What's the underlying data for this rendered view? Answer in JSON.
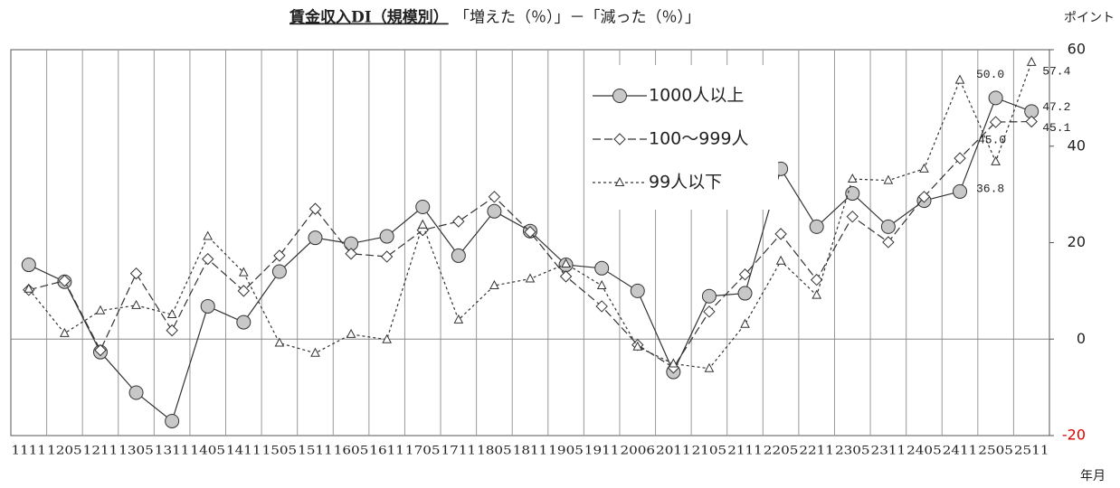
{
  "chart_data": {
    "type": "line",
    "title": "賃金収入DI（規模別）",
    "subtitle": "「増えた（％）」－「減った（％）」",
    "ylabel": "ポイント",
    "xlabel": "年月",
    "categories": [
      "1111",
      "1205",
      "1211",
      "1305",
      "1311",
      "1405",
      "1411",
      "1505",
      "1511",
      "1605",
      "1611",
      "1705",
      "1711",
      "1805",
      "1811",
      "1905",
      "1911",
      "2006",
      "2011",
      "2105",
      "2111",
      "2205",
      "2211",
      "2305",
      "2311",
      "2405",
      "2411",
      "2505",
      "2511"
    ],
    "ylim": [
      -20,
      60
    ],
    "yticks": [
      -20,
      0,
      20,
      40,
      60
    ],
    "y_axis_side": "right",
    "grid": "x",
    "series": [
      {
        "name": "1000人以上",
        "color": "#333333",
        "marker": "circle",
        "dash": "solid",
        "values": [
          15.4,
          11.9,
          -2.7,
          -11.1,
          -17,
          6.8,
          3.5,
          14,
          21,
          19.8,
          21.3,
          27.4,
          17.3,
          26.5,
          22.4,
          15.4,
          14.7,
          10,
          -6.8,
          8.9,
          9.5,
          35.3,
          23.3,
          30.2,
          23.3,
          28.7,
          30.6,
          50.0,
          47.2
        ],
        "value_labels": [
          null,
          null,
          null,
          null,
          null,
          null,
          null,
          null,
          null,
          null,
          null,
          null,
          null,
          null,
          null,
          null,
          null,
          null,
          null,
          null,
          null,
          null,
          null,
          null,
          null,
          null,
          null,
          "50.0",
          "47.2"
        ]
      },
      {
        "name": "100～999人",
        "color": "#333333",
        "marker": "diamond",
        "dash": "dashed",
        "values": [
          10.2,
          12.1,
          -2.3,
          13.6,
          1.8,
          16.6,
          10,
          17.3,
          27,
          17.7,
          17.1,
          22.6,
          24.4,
          29.5,
          22.2,
          13,
          6.8,
          -1.2,
          -5.9,
          5.7,
          13.4,
          21.8,
          12.3,
          25.4,
          20.1,
          29.5,
          37.5,
          45.0,
          45.1
        ],
        "value_labels": [
          null,
          null,
          null,
          null,
          null,
          null,
          null,
          null,
          null,
          null,
          null,
          null,
          null,
          null,
          null,
          null,
          null,
          null,
          null,
          null,
          null,
          null,
          null,
          null,
          null,
          null,
          null,
          "45.0",
          "45.1"
        ]
      },
      {
        "name": "99人以下",
        "color": "#333333",
        "marker": "triangle",
        "dash": "dotted",
        "values": [
          10.4,
          1.2,
          5.9,
          7,
          5.1,
          21.3,
          13.8,
          -0.8,
          -2.9,
          1,
          -0.1,
          23.7,
          4,
          11.1,
          12.5,
          15.6,
          11.1,
          -1.6,
          -5.1,
          -6.1,
          3.1,
          16.2,
          9.1,
          33.2,
          32.9,
          35.3,
          53.7,
          36.8,
          57.4
        ],
        "value_labels": [
          null,
          null,
          null,
          null,
          null,
          null,
          null,
          null,
          null,
          null,
          null,
          null,
          null,
          null,
          null,
          null,
          null,
          null,
          null,
          null,
          null,
          null,
          null,
          null,
          null,
          null,
          null,
          "36.8",
          "57.4"
        ]
      }
    ]
  }
}
